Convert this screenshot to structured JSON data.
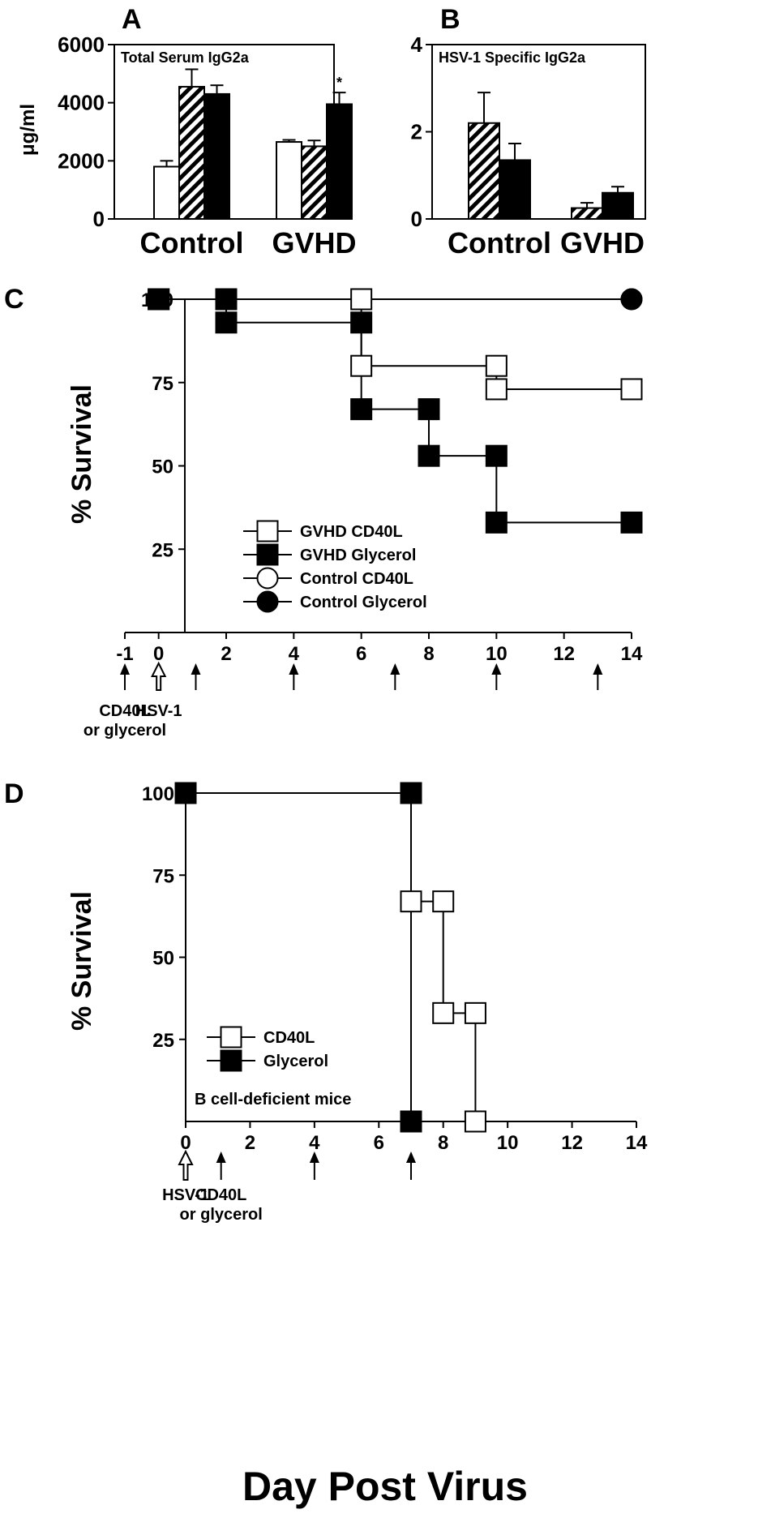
{
  "figure": {
    "x_axis_title": "Day Post Virus"
  },
  "colors": {
    "ink": "#000000",
    "paper": "#ffffff"
  },
  "chart_data": [
    {
      "panel": "A",
      "type": "bar",
      "title": "Total Serum IgG2a",
      "ylabel": "μg/ml",
      "ylim": [
        0,
        6000
      ],
      "yticks": [
        0,
        2000,
        4000,
        6000
      ],
      "categories": [
        "Control",
        "GVHD"
      ],
      "series": [
        {
          "style": "open",
          "values": [
            1800,
            2650
          ],
          "errors": [
            200,
            70
          ]
        },
        {
          "style": "hatched",
          "values": [
            4550,
            2500
          ],
          "errors": [
            600,
            200
          ]
        },
        {
          "style": "filled",
          "values": [
            4300,
            3950
          ],
          "errors": [
            300,
            400
          ]
        }
      ],
      "annotations": [
        {
          "text": "*",
          "category": "GVHD",
          "series": 2
        }
      ]
    },
    {
      "panel": "B",
      "type": "bar",
      "title": "HSV-1 Specific IgG2a",
      "ylim": [
        0,
        4
      ],
      "yticks": [
        0,
        2,
        4
      ],
      "categories": [
        "Control",
        "GVHD"
      ],
      "series": [
        {
          "style": "hatched",
          "values": [
            2.2,
            0.25
          ],
          "errors": [
            0.7,
            0.12
          ]
        },
        {
          "style": "filled",
          "values": [
            1.35,
            0.6
          ],
          "errors": [
            0.38,
            0.14
          ]
        }
      ]
    },
    {
      "panel": "C",
      "type": "line",
      "ylabel": "% Survival",
      "xlabel": "Day Post Virus",
      "xlim": [
        -1,
        14
      ],
      "ylim": [
        0,
        100
      ],
      "xticks": [
        -1,
        0,
        2,
        4,
        6,
        8,
        10,
        12,
        14
      ],
      "yticks": [
        25,
        50,
        75,
        100
      ],
      "series": [
        {
          "name": "GVHD CD40L",
          "marker": "open-square",
          "x": [
            0,
            2,
            6,
            6,
            10,
            10,
            14
          ],
          "y": [
            100,
            100,
            100,
            80,
            80,
            73,
            73
          ]
        },
        {
          "name": "GVHD Glycerol",
          "marker": "filled-square",
          "x": [
            0,
            2,
            2,
            6,
            6,
            8,
            8,
            10,
            10,
            14
          ],
          "y": [
            100,
            100,
            93,
            93,
            67,
            67,
            53,
            53,
            33,
            33
          ]
        },
        {
          "name": "Control CD40L",
          "marker": "open-circle",
          "x": [
            0,
            14
          ],
          "y": [
            100,
            100
          ]
        },
        {
          "name": "Control Glycerol",
          "marker": "filled-circle",
          "x": [
            0,
            14
          ],
          "y": [
            100,
            100
          ]
        }
      ],
      "arrows": [
        {
          "day": -1,
          "kind": "filled",
          "label": [
            "CD40L",
            "or glycerol"
          ]
        },
        {
          "day": 0,
          "kind": "open",
          "label": [
            "HSV-1"
          ]
        },
        {
          "day": 1.1,
          "kind": "filled"
        },
        {
          "day": 4,
          "kind": "filled"
        },
        {
          "day": 7,
          "kind": "filled"
        },
        {
          "day": 10,
          "kind": "filled"
        },
        {
          "day": 13,
          "kind": "filled"
        }
      ]
    },
    {
      "panel": "D",
      "type": "line",
      "ylabel": "% Survival",
      "xlabel": "Day Post Virus",
      "xlim": [
        0,
        14
      ],
      "ylim": [
        0,
        100
      ],
      "xticks": [
        0,
        2,
        4,
        6,
        8,
        10,
        12,
        14
      ],
      "yticks": [
        25,
        50,
        75,
        100
      ],
      "note": "B cell-deficient mice",
      "series": [
        {
          "name": "CD40L",
          "marker": "open-square",
          "x": [
            0,
            7,
            7,
            8,
            8,
            9,
            9
          ],
          "y": [
            100,
            100,
            67,
            67,
            33,
            33,
            0
          ]
        },
        {
          "name": "Glycerol",
          "marker": "filled-square",
          "x": [
            0,
            7,
            7
          ],
          "y": [
            100,
            100,
            0
          ]
        }
      ],
      "arrows": [
        {
          "day": 0,
          "kind": "open",
          "label": [
            "HSV-1"
          ]
        },
        {
          "day": 1.1,
          "kind": "filled",
          "label": [
            "CD40L",
            "or glycerol"
          ]
        },
        {
          "day": 4,
          "kind": "filled"
        },
        {
          "day": 7,
          "kind": "filled"
        }
      ]
    }
  ]
}
